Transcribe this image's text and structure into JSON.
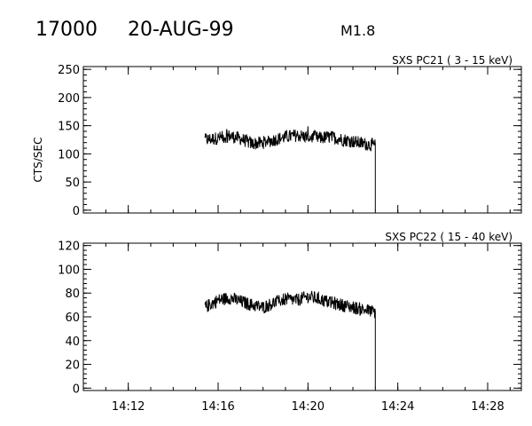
{
  "header": {
    "event_id": "17000",
    "date": "20-AUG-99",
    "flare_class": "M1.8"
  },
  "chart_data": [
    {
      "type": "line",
      "title": "SXS PC21  (  3 - 15 keV)",
      "ylabel": "CTS/SEC",
      "xlabel": "",
      "xlim": [
        "14:10",
        "14:29:30"
      ],
      "ylim": [
        -5,
        255
      ],
      "yticks": [
        0,
        50,
        100,
        150,
        200,
        250
      ],
      "xticks": [
        "14:12",
        "14:16",
        "14:20",
        "14:24",
        "14:28"
      ],
      "show_xtick_labels": false,
      "series": [
        {
          "x": [
            "14:15:25",
            "14:16:00",
            "14:16:30",
            "14:17:00",
            "14:17:30",
            "14:18:00",
            "14:18:30",
            "14:19:00",
            "14:19:30",
            "14:20:00",
            "14:20:30",
            "14:21:00",
            "14:21:30",
            "14:22:00",
            "14:22:30",
            "14:23:00",
            "14:23:05"
          ],
          "values": [
            125,
            128,
            132,
            127,
            118,
            120,
            125,
            130,
            133,
            130,
            128,
            130,
            126,
            122,
            118,
            115,
            0
          ]
        }
      ]
    },
    {
      "type": "line",
      "title": "SXS PC22  ( 15 - 40 keV)",
      "ylabel": "",
      "xlabel": "",
      "xlim": [
        "14:10",
        "14:29:30"
      ],
      "ylim": [
        -2,
        122
      ],
      "yticks": [
        0,
        20,
        40,
        60,
        80,
        100,
        120
      ],
      "xticks": [
        "14:12",
        "14:16",
        "14:20",
        "14:24",
        "14:28"
      ],
      "show_xtick_labels": true,
      "series": [
        {
          "x": [
            "14:15:25",
            "14:16:00",
            "14:16:30",
            "14:17:00",
            "14:17:30",
            "14:18:00",
            "14:18:30",
            "14:19:00",
            "14:19:30",
            "14:20:00",
            "14:20:30",
            "14:21:00",
            "14:21:30",
            "14:22:00",
            "14:22:30",
            "14:23:00",
            "14:23:05"
          ],
          "values": [
            68,
            74,
            76,
            73,
            70,
            68,
            72,
            75,
            74,
            77,
            75,
            72,
            70,
            68,
            66,
            64,
            0
          ]
        }
      ]
    }
  ]
}
